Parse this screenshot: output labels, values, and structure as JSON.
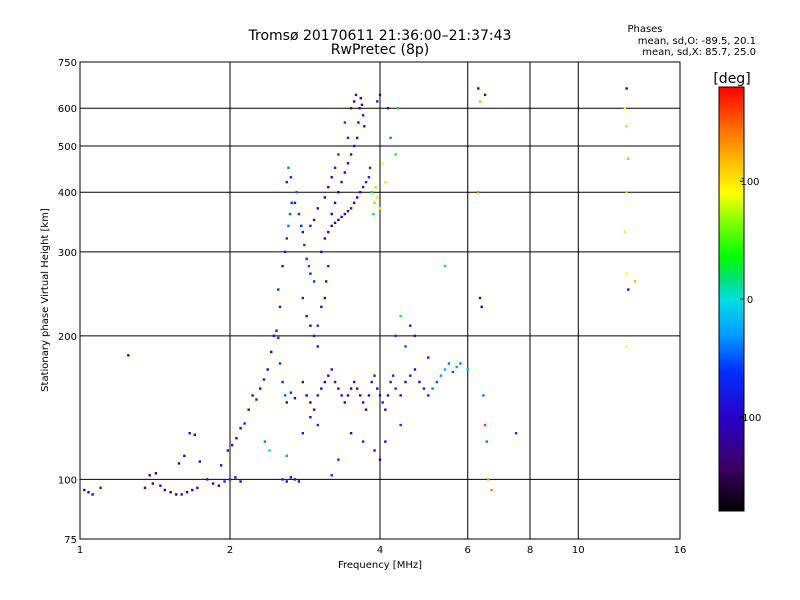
{
  "chart_data": {
    "type": "scatter",
    "title": "Tromsø 20170611 21:36:00–21:37:43",
    "subtitle": "RwPretec (8p)",
    "xlabel": "Frequency [MHz]",
    "ylabel": "Stationary phase Virtual Height [km]",
    "x_scale": "log",
    "y_scale": "log",
    "xlim": [
      1,
      16
    ],
    "ylim": [
      75,
      750
    ],
    "x_ticks": [
      1,
      2,
      4,
      6,
      8,
      10,
      16
    ],
    "y_ticks": [
      75,
      100,
      200,
      300,
      400,
      500,
      600,
      750
    ],
    "x_grid": [
      2,
      4,
      6,
      8,
      10
    ],
    "y_grid": [
      100,
      200,
      300,
      400,
      500,
      600
    ],
    "grid": true,
    "phase_stats": {
      "title": "Phases",
      "line_o": "mean, sd,O: -89.5, 20.1",
      "line_x": "mean, sd,X: 85.7, 25.0"
    },
    "colorbar": {
      "label": "[deg]",
      "range": [
        -180,
        180
      ],
      "ticks": [
        100,
        0,
        -100
      ],
      "tick_labels": [
        "100",
        "0",
        "-100"
      ],
      "placement": "right"
    },
    "series": [
      {
        "values": [
          [
            1.02,
            95,
            -100
          ],
          [
            1.04,
            94,
            -100
          ],
          [
            1.06,
            93,
            -100
          ],
          [
            1.1,
            96,
            -90
          ],
          [
            1.25,
            182,
            -100
          ],
          [
            1.35,
            96,
            -110
          ],
          [
            1.38,
            102,
            -100
          ],
          [
            1.4,
            98,
            -100
          ],
          [
            1.42,
            103,
            -110
          ],
          [
            1.45,
            97,
            -100
          ],
          [
            1.48,
            95,
            -110
          ],
          [
            1.52,
            94,
            -110
          ],
          [
            1.56,
            93,
            -120
          ],
          [
            1.6,
            93,
            -110
          ],
          [
            1.64,
            94,
            -100
          ],
          [
            1.68,
            95,
            -100
          ],
          [
            1.72,
            96,
            -90
          ],
          [
            1.58,
            108,
            -100
          ],
          [
            1.62,
            112,
            -100
          ],
          [
            1.66,
            125,
            -90
          ],
          [
            1.7,
            124,
            -100
          ],
          [
            1.74,
            109,
            -100
          ],
          [
            1.8,
            100,
            -80
          ],
          [
            1.85,
            98,
            -90
          ],
          [
            1.9,
            97,
            -100
          ],
          [
            1.95,
            99,
            -80
          ],
          [
            2.0,
            100,
            -60
          ],
          [
            2.05,
            101,
            -90
          ],
          [
            2.1,
            99,
            -100
          ],
          [
            1.92,
            107,
            -100
          ],
          [
            1.98,
            115,
            -90
          ],
          [
            2.02,
            118,
            -80
          ],
          [
            2.06,
            122,
            -100
          ],
          [
            2.1,
            128,
            -90
          ],
          [
            2.14,
            131,
            -70
          ],
          [
            2.18,
            140,
            -90
          ],
          [
            2.22,
            150,
            -100
          ],
          [
            2.26,
            147,
            -80
          ],
          [
            2.3,
            155,
            -100
          ],
          [
            2.34,
            162,
            -90
          ],
          [
            2.38,
            170,
            -100
          ],
          [
            2.42,
            185,
            -100
          ],
          [
            2.45,
            200,
            -90
          ],
          [
            2.48,
            205,
            -80
          ],
          [
            2.5,
            198,
            -60
          ],
          [
            2.52,
            175,
            -60
          ],
          [
            2.55,
            160,
            -70
          ],
          [
            2.58,
            150,
            -50
          ],
          [
            2.6,
            145,
            -90
          ],
          [
            2.65,
            152,
            -60
          ],
          [
            2.7,
            148,
            -100
          ],
          [
            2.55,
            100,
            -70
          ],
          [
            2.6,
            99,
            -80
          ],
          [
            2.65,
            101,
            -90
          ],
          [
            2.7,
            100,
            -100
          ],
          [
            2.75,
            99,
            -110
          ],
          [
            2.35,
            120,
            -40
          ],
          [
            2.4,
            115,
            10
          ],
          [
            2.6,
            112,
            -30
          ],
          [
            2.5,
            250,
            -60
          ],
          [
            2.52,
            230,
            -90
          ],
          [
            2.55,
            280,
            -80
          ],
          [
            2.58,
            300,
            -70
          ],
          [
            2.6,
            320,
            -60
          ],
          [
            2.62,
            340,
            -40
          ],
          [
            2.64,
            360,
            -50
          ],
          [
            2.66,
            380,
            -60
          ],
          [
            2.6,
            420,
            -70
          ],
          [
            2.62,
            450,
            -40
          ],
          [
            2.65,
            430,
            -60
          ],
          [
            2.7,
            380,
            -80
          ],
          [
            2.72,
            400,
            -50
          ],
          [
            2.75,
            360,
            -60
          ],
          [
            2.78,
            340,
            -70
          ],
          [
            2.8,
            330,
            -90
          ],
          [
            2.82,
            310,
            -60
          ],
          [
            2.85,
            290,
            -60
          ],
          [
            2.88,
            280,
            -50
          ],
          [
            2.9,
            270,
            -70
          ],
          [
            2.95,
            260,
            -60
          ],
          [
            2.8,
            240,
            -60
          ],
          [
            2.85,
            220,
            -80
          ],
          [
            2.9,
            210,
            -100
          ],
          [
            2.95,
            200,
            -70
          ],
          [
            3.0,
            190,
            -80
          ],
          [
            3.0,
            210,
            -60
          ],
          [
            3.05,
            230,
            -90
          ],
          [
            3.1,
            240,
            -100
          ],
          [
            3.12,
            260,
            -80
          ],
          [
            3.15,
            280,
            -70
          ],
          [
            3.05,
            300,
            -90
          ],
          [
            3.1,
            320,
            -110
          ],
          [
            3.15,
            330,
            -100
          ],
          [
            3.2,
            340,
            -110
          ],
          [
            3.25,
            345,
            -120
          ],
          [
            3.3,
            350,
            -110
          ],
          [
            3.35,
            355,
            -100
          ],
          [
            3.4,
            360,
            -110
          ],
          [
            3.45,
            365,
            -100
          ],
          [
            3.5,
            370,
            -90
          ],
          [
            3.55,
            380,
            -100
          ],
          [
            3.6,
            390,
            -110
          ],
          [
            3.65,
            400,
            -100
          ],
          [
            3.7,
            410,
            -90
          ],
          [
            3.75,
            420,
            -80
          ],
          [
            3.2,
            360,
            -120
          ],
          [
            3.25,
            380,
            -110
          ],
          [
            3.3,
            400,
            -120
          ],
          [
            3.35,
            420,
            -100
          ],
          [
            3.4,
            440,
            -110
          ],
          [
            3.45,
            460,
            -100
          ],
          [
            3.5,
            480,
            -90
          ],
          [
            3.55,
            500,
            -100
          ],
          [
            3.6,
            520,
            -80
          ],
          [
            3.62,
            560,
            -90
          ],
          [
            3.64,
            600,
            -100
          ],
          [
            3.66,
            630,
            -110
          ],
          [
            3.68,
            610,
            -90
          ],
          [
            3.7,
            580,
            -80
          ],
          [
            3.72,
            550,
            -90
          ],
          [
            3.5,
            600,
            -80
          ],
          [
            3.55,
            620,
            -100
          ],
          [
            3.58,
            640,
            -90
          ],
          [
            3.4,
            560,
            -60
          ],
          [
            3.45,
            520,
            -70
          ],
          [
            3.3,
            480,
            -60
          ],
          [
            3.25,
            450,
            -80
          ],
          [
            3.2,
            430,
            -90
          ],
          [
            3.15,
            410,
            -100
          ],
          [
            3.1,
            390,
            -110
          ],
          [
            3.0,
            370,
            -100
          ],
          [
            2.95,
            350,
            -90
          ],
          [
            2.9,
            340,
            -80
          ],
          [
            3.8,
            430,
            -70
          ],
          [
            3.82,
            450,
            -60
          ],
          [
            3.85,
            400,
            30
          ],
          [
            3.9,
            380,
            60
          ],
          [
            3.95,
            390,
            80
          ],
          [
            4.0,
            370,
            100
          ],
          [
            3.92,
            410,
            70
          ],
          [
            3.88,
            360,
            20
          ],
          [
            4.05,
            460,
            90
          ],
          [
            4.1,
            420,
            80
          ],
          [
            4.15,
            600,
            -90
          ],
          [
            4.2,
            520,
            -40
          ],
          [
            4.3,
            480,
            40
          ],
          [
            4.35,
            600,
            20
          ],
          [
            4.0,
            640,
            -100
          ],
          [
            3.95,
            620,
            -80
          ],
          [
            2.8,
            160,
            -90
          ],
          [
            2.85,
            150,
            -100
          ],
          [
            2.9,
            145,
            -110
          ],
          [
            2.95,
            140,
            -90
          ],
          [
            3.0,
            150,
            -80
          ],
          [
            3.05,
            155,
            -100
          ],
          [
            3.1,
            160,
            -110
          ],
          [
            3.15,
            165,
            -100
          ],
          [
            3.2,
            170,
            -90
          ],
          [
            3.25,
            160,
            -80
          ],
          [
            3.3,
            155,
            -100
          ],
          [
            3.35,
            150,
            -110
          ],
          [
            3.4,
            145,
            -120
          ],
          [
            3.45,
            150,
            -110
          ],
          [
            3.5,
            155,
            -100
          ],
          [
            3.55,
            160,
            -90
          ],
          [
            3.6,
            155,
            -80
          ],
          [
            3.65,
            150,
            -100
          ],
          [
            3.7,
            145,
            -110
          ],
          [
            3.75,
            140,
            -100
          ],
          [
            3.8,
            150,
            -90
          ],
          [
            3.85,
            160,
            -80
          ],
          [
            3.9,
            165,
            -70
          ],
          [
            3.95,
            155,
            -90
          ],
          [
            4.0,
            150,
            -100
          ],
          [
            4.05,
            145,
            -80
          ],
          [
            4.1,
            140,
            -100
          ],
          [
            4.15,
            150,
            -90
          ],
          [
            4.2,
            160,
            -80
          ],
          [
            4.25,
            165,
            -70
          ],
          [
            4.3,
            155,
            -60
          ],
          [
            4.4,
            150,
            -90
          ],
          [
            4.5,
            160,
            -100
          ],
          [
            4.6,
            165,
            -80
          ],
          [
            4.7,
            170,
            -90
          ],
          [
            4.8,
            160,
            -100
          ],
          [
            4.9,
            155,
            -80
          ],
          [
            5.0,
            150,
            -60
          ],
          [
            5.1,
            155,
            -40
          ],
          [
            5.2,
            160,
            -50
          ],
          [
            5.3,
            165,
            -30
          ],
          [
            5.4,
            170,
            -20
          ],
          [
            5.5,
            175,
            -40
          ],
          [
            5.6,
            168,
            -50
          ],
          [
            5.7,
            172,
            -30
          ],
          [
            5.8,
            175,
            -40
          ],
          [
            6.0,
            170,
            -20
          ],
          [
            4.7,
            200,
            -90
          ],
          [
            4.6,
            210,
            -80
          ],
          [
            4.5,
            190,
            -50
          ],
          [
            4.4,
            220,
            30
          ],
          [
            4.3,
            200,
            -60
          ],
          [
            5.0,
            180,
            -80
          ],
          [
            5.4,
            280,
            30
          ],
          [
            4.1,
            120,
            -100
          ],
          [
            4.0,
            110,
            -110
          ],
          [
            3.9,
            115,
            -90
          ],
          [
            3.7,
            120,
            -80
          ],
          [
            3.5,
            125,
            -100
          ],
          [
            3.3,
            110,
            -70
          ],
          [
            3.0,
            130,
            -80
          ],
          [
            2.9,
            135,
            -90
          ],
          [
            2.8,
            125,
            -70
          ],
          [
            3.2,
            102,
            -60
          ],
          [
            4.4,
            130,
            -60
          ],
          [
            6.3,
            660,
            -100
          ],
          [
            6.35,
            620,
            60
          ],
          [
            6.5,
            640,
            -90
          ],
          [
            6.3,
            400,
            140
          ],
          [
            6.35,
            240,
            -90
          ],
          [
            6.4,
            230,
            -100
          ],
          [
            6.45,
            150,
            -40
          ],
          [
            6.5,
            130,
            160
          ],
          [
            6.55,
            120,
            -40
          ],
          [
            6.6,
            100,
            130
          ],
          [
            6.7,
            95,
            140
          ],
          [
            7.5,
            125,
            -60
          ],
          [
            12.5,
            660,
            -100
          ],
          [
            12.4,
            600,
            90
          ],
          [
            12.5,
            550,
            110
          ],
          [
            12.6,
            470,
            120
          ],
          [
            12.5,
            400,
            115
          ],
          [
            12.4,
            330,
            100
          ],
          [
            12.5,
            270,
            90
          ],
          [
            12.6,
            250,
            -100
          ],
          [
            13.0,
            260,
            120
          ],
          [
            12.5,
            190,
            90
          ]
        ]
      }
    ]
  }
}
